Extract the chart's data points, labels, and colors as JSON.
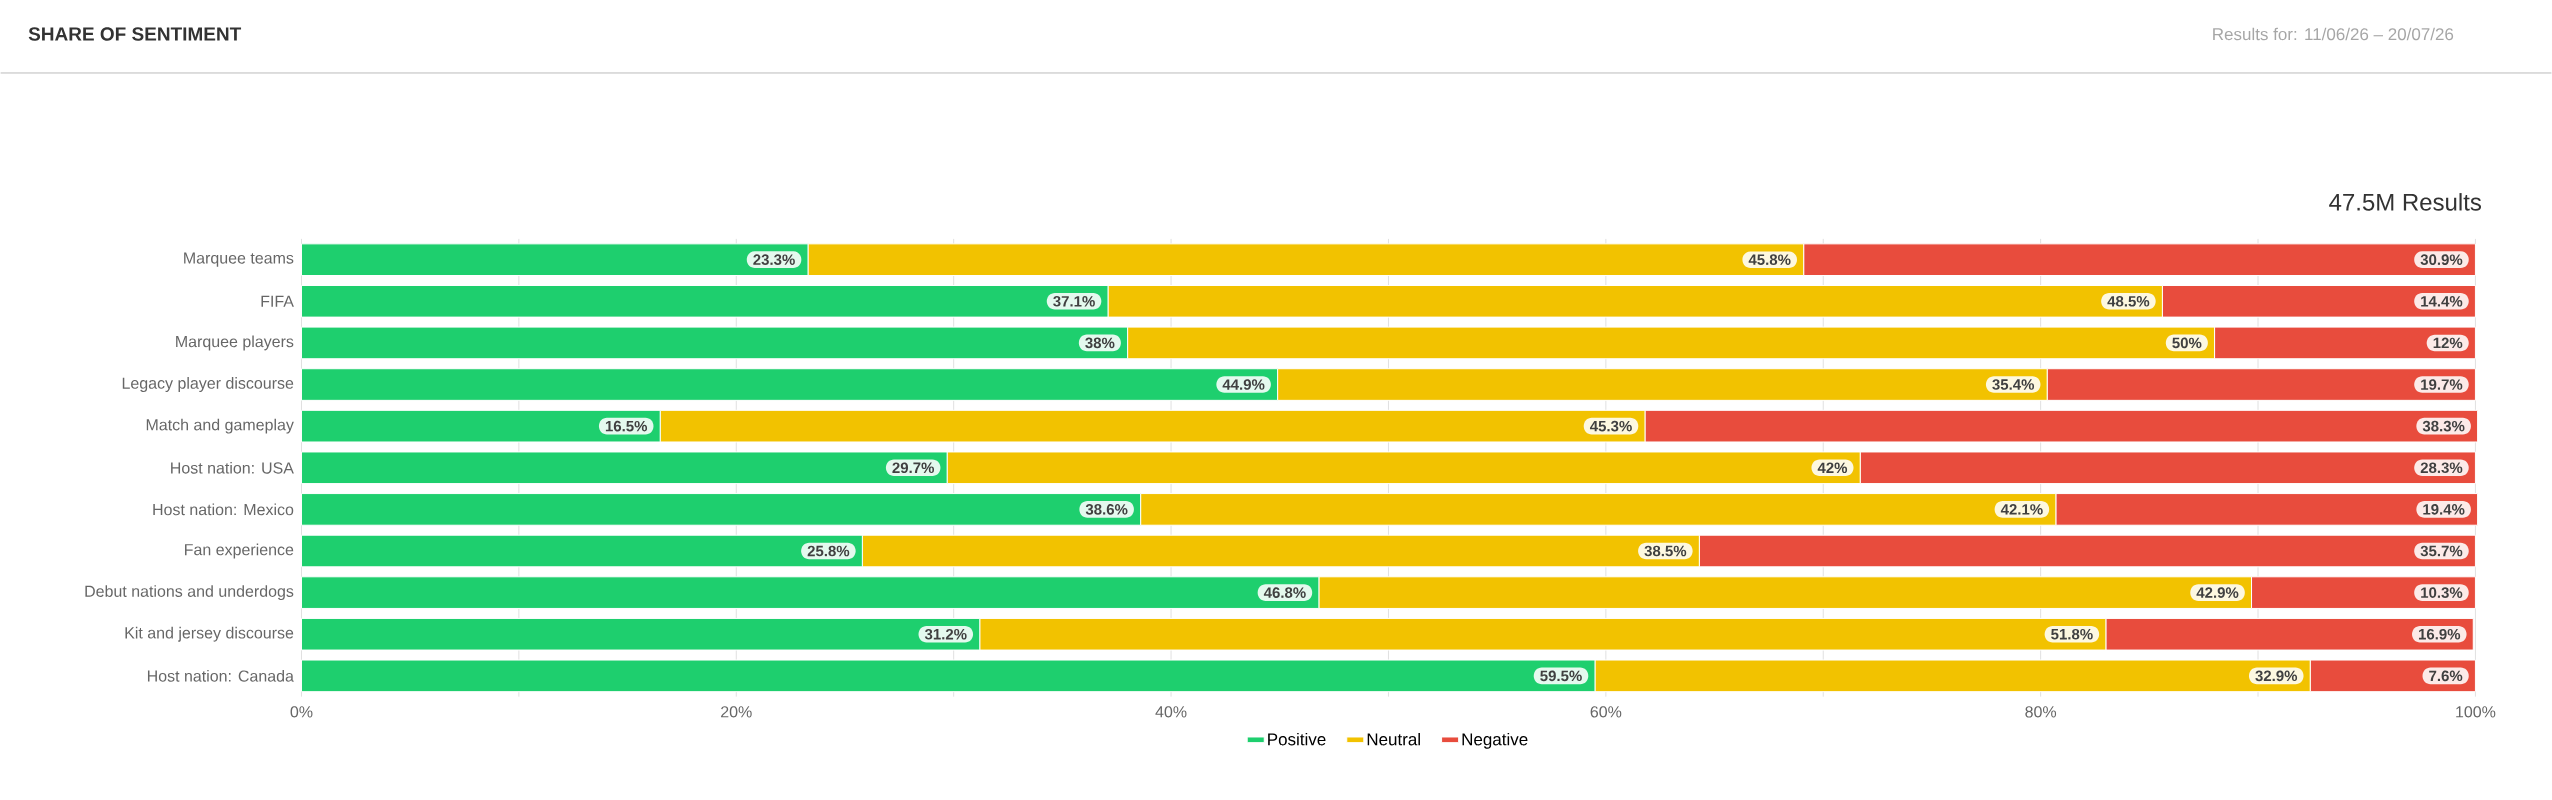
{
  "chart_data": {
    "type": "bar",
    "orientation": "horizontal",
    "stacked": true,
    "title": "SHARE OF SENTIMENT",
    "subtitle": "Results for: 11/06/26 – 20/07/26",
    "annotations": [
      "47.5M Results"
    ],
    "categories": [
      "Marquee teams",
      "FIFA",
      "Marquee players",
      "Legacy player discourse",
      "Match and gameplay",
      "Host nation: USA",
      "Host nation: Mexico",
      "Fan experience",
      "Debut nations and underdogs",
      "Kit and jersey discourse",
      "Host nation: Canada"
    ],
    "series": [
      {
        "name": "Positive",
        "color": "#1ecf6e",
        "values": [
          23.3,
          37.1,
          38,
          44.9,
          16.5,
          29.7,
          38.6,
          25.8,
          46.8,
          31.2,
          59.5
        ],
        "value_labels": [
          "23.3%",
          "37.1%",
          "38%",
          "44.9%",
          "16.5%",
          "29.7%",
          "38.6%",
          "25.8%",
          "46.8%",
          "31.2%",
          "59.5%"
        ]
      },
      {
        "name": "Neutral",
        "color": "#f2c200",
        "values": [
          45.8,
          48.5,
          50,
          35.4,
          45.3,
          42,
          42.1,
          38.5,
          42.9,
          51.8,
          32.9
        ],
        "value_labels": [
          "45.8%",
          "48.5%",
          "50%",
          "35.4%",
          "45.3%",
          "42%",
          "42.1%",
          "38.5%",
          "42.9%",
          "51.8%",
          "32.9%"
        ]
      },
      {
        "name": "Negative",
        "color": "#e84c3d",
        "values": [
          30.9,
          14.4,
          12,
          19.7,
          38.3,
          28.3,
          19.4,
          35.7,
          10.3,
          16.9,
          7.6
        ],
        "value_labels": [
          "30.9%",
          "14.4%",
          "12%",
          "19.7%",
          "38.3%",
          "28.3%",
          "19.4%",
          "35.7%",
          "10.3%",
          "16.9%",
          "7.6%"
        ]
      }
    ],
    "xlim": [
      0,
      100
    ],
    "xticks": [
      {
        "value": 0,
        "label": "0%"
      },
      {
        "value": 10,
        "label": null
      },
      {
        "value": 20,
        "label": "20%"
      },
      {
        "value": 30,
        "label": null
      },
      {
        "value": 40,
        "label": "40%"
      },
      {
        "value": 50,
        "label": null
      },
      {
        "value": 60,
        "label": "60%"
      },
      {
        "value": 70,
        "label": null
      },
      {
        "value": 80,
        "label": "80%"
      },
      {
        "value": 90,
        "label": null
      },
      {
        "value": 100,
        "label": "100%"
      }
    ],
    "grid": "x",
    "legend": "bottom"
  }
}
